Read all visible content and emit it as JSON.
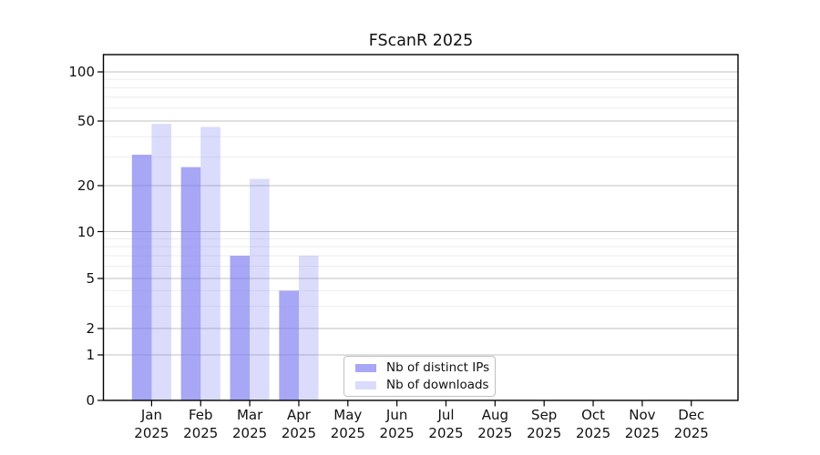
{
  "chart_data": {
    "type": "bar",
    "title": "FScanR 2025",
    "categories": [
      "Jan 2025",
      "Feb 2025",
      "Mar 2025",
      "Apr 2025",
      "May 2025",
      "Jun 2025",
      "Jul 2025",
      "Aug 2025",
      "Sep 2025",
      "Oct 2025",
      "Nov 2025",
      "Dec 2025"
    ],
    "series": [
      {
        "name": "Nb of distinct IPs",
        "color": "#7a7af2",
        "alpha": 0.66,
        "values": [
          31,
          26,
          7,
          4,
          0,
          0,
          0,
          0,
          0,
          0,
          0,
          0
        ]
      },
      {
        "name": "Nb of downloads",
        "color": "#7a7af2",
        "alpha": 0.27,
        "values": [
          48,
          46,
          22,
          7,
          0,
          0,
          0,
          0,
          0,
          0,
          0,
          0
        ]
      }
    ],
    "xlabel": "",
    "ylabel": "",
    "y_ticks": [
      0,
      1,
      2,
      5,
      10,
      20,
      50,
      100
    ],
    "ylim": [
      0,
      128
    ],
    "yscale": "pseudo-log (compressed near zero, ticks 0,1,2,5,10,20,50,100)",
    "grid": "horizontal major gridlines at labeled ticks plus faint minor gridlines (3,4,6,7,8,9,30,40,60,70,80,90)",
    "legend_position": "inside plot, bottom center-left",
    "bars": "paired per month, distinct-IPs bar left of tick, downloads bar right of tick, no gap within pair"
  },
  "colors": {
    "bar_ips_effective": "#a8a8f7",
    "bar_downloads_effective": "#dbdbf9",
    "major_grid": "#c2c2c2",
    "minor_grid": "#ededed",
    "spine": "#000000",
    "background": "#ffffff"
  }
}
